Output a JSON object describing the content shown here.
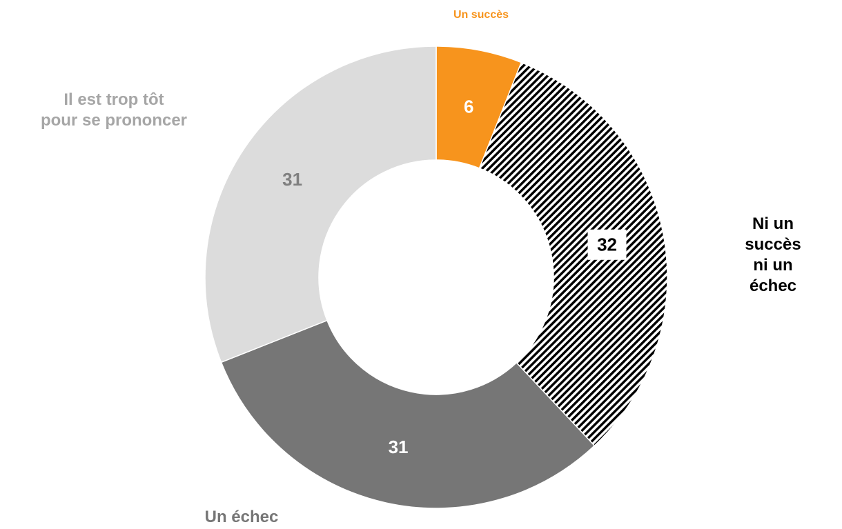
{
  "chart_data": {
    "type": "donut",
    "categories": [
      "Un succès",
      "Ni un succès\nni un échec",
      "Un échec",
      "Il est trop tôt\npour se prononcer"
    ],
    "values": [
      6,
      32,
      31,
      31
    ],
    "colors": [
      "#f7941d",
      "#000000",
      "#767676",
      "#dcdcdc"
    ],
    "hatched": [
      false,
      true,
      false,
      false
    ],
    "label_colors": [
      "#f7941d",
      "#000000",
      "#767676",
      "#a6a6a6"
    ],
    "value_label_colors": [
      "#ffffff",
      "#000000",
      "#ffffff",
      "#7f7f7f"
    ]
  }
}
